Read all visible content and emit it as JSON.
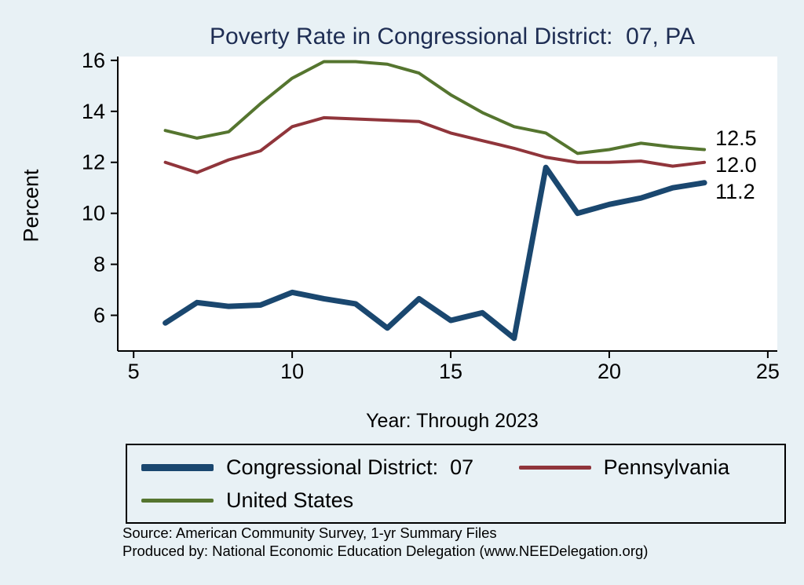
{
  "chart_data": {
    "type": "line",
    "title": "Poverty Rate in Congressional District:  07, PA",
    "xlabel": "Year: Through 2023",
    "ylabel": "Percent",
    "background_color": "#e8f1f5",
    "plot_background": "#ffffff",
    "title_color": "#1e2d53",
    "xlim": [
      4.5,
      25.3
    ],
    "ylim": [
      4.6,
      16.15
    ],
    "xticks": [
      5,
      10,
      15,
      20,
      25
    ],
    "yticks": [
      6,
      8,
      10,
      12,
      14,
      16
    ],
    "legend_position": "bottom",
    "grid": false,
    "x": [
      6,
      7,
      8,
      9,
      10,
      11,
      12,
      13,
      14,
      15,
      16,
      17,
      18,
      19,
      20,
      21,
      22,
      23
    ],
    "series": [
      {
        "name": "Congressional District:  07",
        "color": "#1a476f",
        "line_width": 7,
        "end_label": "11.2",
        "values": [
          5.7,
          6.5,
          6.35,
          6.4,
          6.9,
          6.65,
          6.45,
          5.5,
          6.65,
          5.8,
          6.1,
          5.1,
          11.8,
          10.0,
          10.35,
          10.6,
          11.0,
          11.2
        ]
      },
      {
        "name": "Pennsylvania",
        "color": "#90353b",
        "line_width": 4,
        "end_label": "12.0",
        "values": [
          12.0,
          11.6,
          12.1,
          12.45,
          13.4,
          13.75,
          13.7,
          13.65,
          13.6,
          13.15,
          12.85,
          12.55,
          12.2,
          12.0,
          12.0,
          12.05,
          11.85,
          12.0
        ]
      },
      {
        "name": "United States",
        "color": "#55752f",
        "line_width": 4,
        "end_label": "12.5",
        "values": [
          13.25,
          12.95,
          13.2,
          14.3,
          15.3,
          15.95,
          15.95,
          15.85,
          15.5,
          14.65,
          13.95,
          13.4,
          13.15,
          12.35,
          12.5,
          12.75,
          12.6,
          12.5
        ]
      }
    ]
  },
  "notes": {
    "source": "Source: American Community Survey, 1-yr Summary Files",
    "produced_by": "Produced by: National Economic Education Delegation (www.NEEDelegation.org)"
  }
}
